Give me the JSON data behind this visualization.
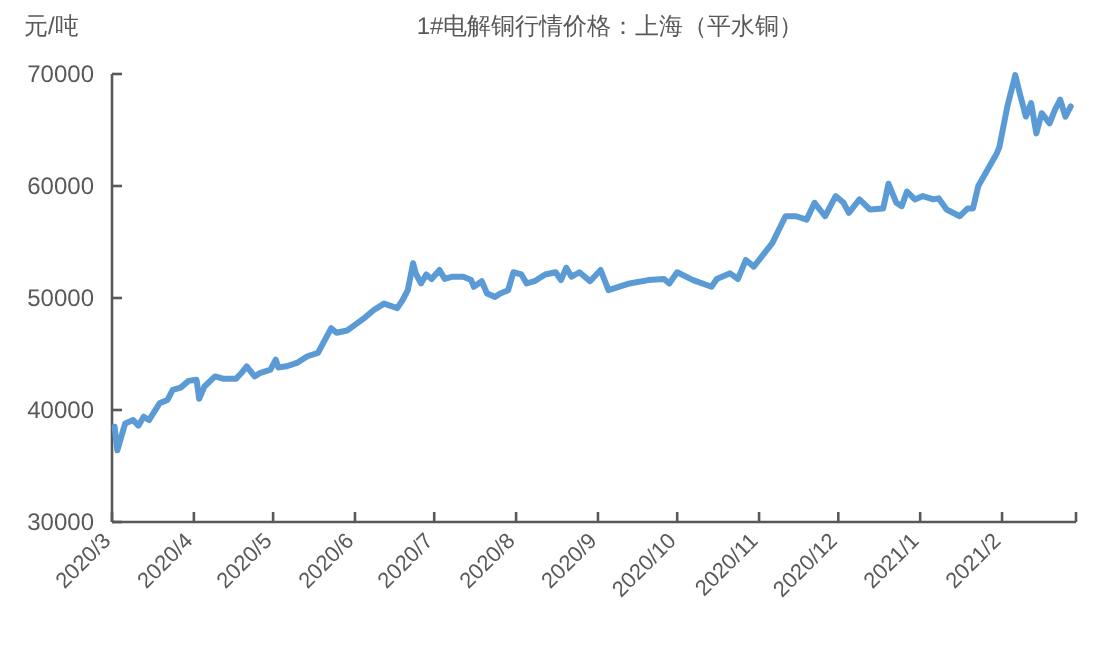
{
  "chart_data": {
    "type": "line",
    "title": "1#电解铜行情价格：上海（平水铜）",
    "ylabel": "元/吨",
    "x": [
      "2020-03-02",
      "2020-03-03",
      "2020-03-06",
      "2020-03-09",
      "2020-03-11",
      "2020-03-13",
      "2020-03-15",
      "2020-03-19",
      "2020-03-22",
      "2020-03-24",
      "2020-03-27",
      "2020-03-30",
      "2020-04-02",
      "2020-04-03",
      "2020-04-05",
      "2020-04-09",
      "2020-04-12",
      "2020-04-17",
      "2020-04-19",
      "2020-04-21",
      "2020-04-24",
      "2020-04-26",
      "2020-04-30",
      "2020-05-02",
      "2020-05-03",
      "2020-05-06",
      "2020-05-10",
      "2020-05-14",
      "2020-05-18",
      "2020-05-20",
      "2020-05-23",
      "2020-05-25",
      "2020-05-29",
      "2020-06-01",
      "2020-06-05",
      "2020-06-08",
      "2020-06-12",
      "2020-06-17",
      "2020-06-19",
      "2020-06-21",
      "2020-06-23",
      "2020-06-24",
      "2020-06-26",
      "2020-06-28",
      "2020-06-30",
      "2020-07-03",
      "2020-07-05",
      "2020-07-08",
      "2020-07-12",
      "2020-07-15",
      "2020-07-16",
      "2020-07-19",
      "2020-07-21",
      "2020-07-24",
      "2020-07-26",
      "2020-07-29",
      "2020-07-31",
      "2020-08-03",
      "2020-08-05",
      "2020-08-08",
      "2020-08-12",
      "2020-08-16",
      "2020-08-18",
      "2020-08-20",
      "2020-08-22",
      "2020-08-25",
      "2020-08-29",
      "2020-09-02",
      "2020-09-05",
      "2020-09-13",
      "2020-09-20",
      "2020-09-26",
      "2020-09-28",
      "2020-10-01",
      "2020-10-07",
      "2020-10-14",
      "2020-10-16",
      "2020-10-21",
      "2020-10-24",
      "2020-10-27",
      "2020-10-30",
      "2020-11-02",
      "2020-11-06",
      "2020-11-11",
      "2020-11-15",
      "2020-11-19",
      "2020-11-22",
      "2020-11-26",
      "2020-11-30",
      "2020-12-03",
      "2020-12-05",
      "2020-12-09",
      "2020-12-13",
      "2020-12-18",
      "2020-12-20",
      "2020-12-23",
      "2020-12-25",
      "2020-12-27",
      "2020-12-30",
      "2021-01-02",
      "2021-01-06",
      "2021-01-08",
      "2021-01-11",
      "2021-01-16",
      "2021-01-19",
      "2021-01-21",
      "2021-01-23",
      "2021-01-30",
      "2021-01-31",
      "2021-02-03",
      "2021-02-06",
      "2021-02-08",
      "2021-02-10",
      "2021-02-12",
      "2021-02-14",
      "2021-02-16",
      "2021-02-19",
      "2021-02-21",
      "2021-02-23",
      "2021-02-25",
      "2021-02-27"
    ],
    "series": [
      {
        "color": "#5b9bd5",
        "values": [
          38500,
          36400,
          38800,
          39100,
          38600,
          39400,
          39100,
          40600,
          40900,
          41800,
          42000,
          42600,
          42700,
          41000,
          42100,
          43000,
          42800,
          42800,
          43300,
          43900,
          43000,
          43300,
          43600,
          44500,
          43800,
          43900,
          44200,
          44800,
          45100,
          46000,
          47300,
          46900,
          47100,
          47600,
          48300,
          48900,
          49500,
          49100,
          49800,
          50700,
          53100,
          52200,
          51300,
          52100,
          51700,
          52500,
          51700,
          51900,
          51900,
          51600,
          51000,
          51500,
          50400,
          50100,
          50400,
          50700,
          52300,
          52100,
          51300,
          51500,
          52100,
          52300,
          51600,
          52700,
          51900,
          52300,
          51500,
          52500,
          50700,
          51300,
          51600,
          51700,
          51300,
          52300,
          51600,
          51000,
          51700,
          52200,
          51700,
          53400,
          52800,
          53700,
          54900,
          57300,
          57300,
          57000,
          58500,
          57300,
          59100,
          58500,
          57600,
          58800,
          57900,
          58000,
          60200,
          58500,
          58200,
          59500,
          58800,
          59100,
          58800,
          58900,
          57900,
          57300,
          58000,
          58000,
          60000,
          62900,
          63500,
          67100,
          69900,
          68000,
          66200,
          67400,
          64700,
          66500,
          65600,
          66800,
          67700,
          66200,
          67100
        ]
      }
    ],
    "xlim": [
      "2020-03-01",
      "2021-03-01"
    ],
    "xticks": [
      {
        "value": "2020-03-01",
        "label": "2020/3"
      },
      {
        "value": "2020-04-01",
        "label": "2020/4"
      },
      {
        "value": "2020-05-01",
        "label": "2020/5"
      },
      {
        "value": "2020-06-01",
        "label": "2020/6"
      },
      {
        "value": "2020-07-01",
        "label": "2020/7"
      },
      {
        "value": "2020-08-01",
        "label": "2020/8"
      },
      {
        "value": "2020-09-01",
        "label": "2020/9"
      },
      {
        "value": "2020-10-01",
        "label": "2020/10"
      },
      {
        "value": "2020-11-01",
        "label": "2020/11"
      },
      {
        "value": "2020-12-01",
        "label": "2020/12"
      },
      {
        "value": "2021-01-01",
        "label": "2021/1"
      },
      {
        "value": "2021-02-01",
        "label": "2021/2"
      },
      {
        "value": "2021-03-01",
        "label": null
      }
    ],
    "ylim": [
      30000,
      70000
    ],
    "yticks": [
      30000,
      40000,
      50000,
      60000,
      70000
    ],
    "grid": false,
    "marker": "none",
    "line_style": "solid"
  }
}
